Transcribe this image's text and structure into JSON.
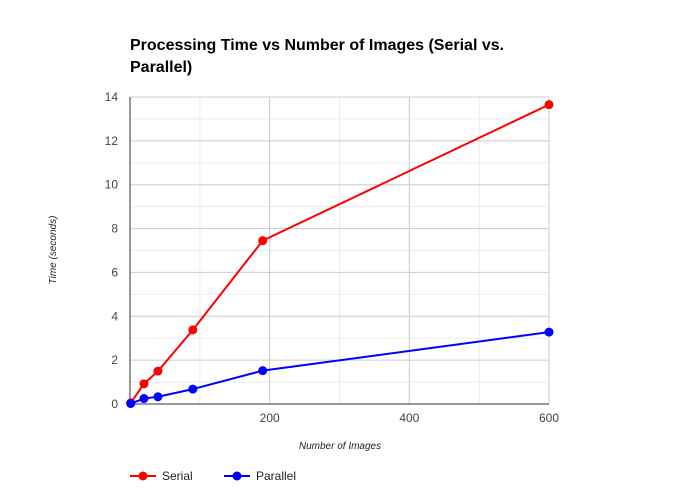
{
  "chart_data": {
    "type": "line",
    "title": "Processing Time vs Number of Images (Serial vs. Parallel)",
    "xlabel": "Number of Images",
    "ylabel": "Time (seconds)",
    "xlim": [
      0,
      600
    ],
    "ylim": [
      0,
      14
    ],
    "x_ticks": [
      200,
      400,
      600
    ],
    "y_ticks": [
      0,
      2,
      4,
      6,
      8,
      10,
      12,
      14
    ],
    "grid": true,
    "legend": "bottom-left",
    "series": [
      {
        "name": "Serial",
        "color": "#ff0000",
        "points": [
          [
            1,
            0.05
          ],
          [
            20,
            0.92
          ],
          [
            40,
            1.5
          ],
          [
            90,
            3.38
          ],
          [
            190,
            7.45
          ],
          [
            600,
            13.65
          ]
        ]
      },
      {
        "name": "Parallel",
        "color": "#0000ff",
        "points": [
          [
            1,
            0.02
          ],
          [
            20,
            0.25
          ],
          [
            40,
            0.33
          ],
          [
            90,
            0.68
          ],
          [
            190,
            1.52
          ],
          [
            600,
            3.28
          ]
        ]
      }
    ]
  }
}
